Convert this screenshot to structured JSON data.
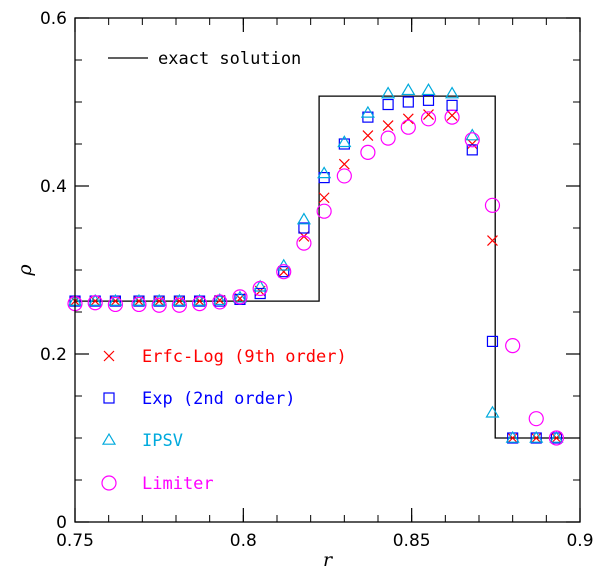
{
  "chart_data": {
    "type": "scatter",
    "title": "",
    "xlabel": "r",
    "ylabel": "ρ",
    "xlim": [
      0.75,
      0.9
    ],
    "ylim": [
      0,
      0.6
    ],
    "x_ticks": [
      0.75,
      0.8,
      0.85,
      0.9
    ],
    "x_tick_labels": [
      "0.75",
      "0.8",
      "0.85",
      "0.9"
    ],
    "y_ticks": [
      0,
      0.2,
      0.4,
      0.6
    ],
    "y_tick_labels": [
      "0",
      "0.2",
      "0.4",
      "0.6"
    ],
    "x_minor_step": 0.01,
    "y_minor_step": 0.05,
    "grid": false,
    "exact_solution": {
      "name": "exact solution",
      "color": "#000000",
      "x": [
        0.75,
        0.8225,
        0.8225,
        0.8748,
        0.8748,
        0.9
      ],
      "y": [
        0.263,
        0.263,
        0.507,
        0.507,
        0.1,
        0.1
      ]
    },
    "series": [
      {
        "name": "Erfc-Log (9th order)",
        "marker": "cross",
        "color": "#ff0000",
        "x": [
          0.75,
          0.756,
          0.762,
          0.769,
          0.775,
          0.781,
          0.787,
          0.793,
          0.799,
          0.805,
          0.812,
          0.818,
          0.824,
          0.83,
          0.837,
          0.843,
          0.849,
          0.855,
          0.862,
          0.868,
          0.874,
          0.88,
          0.887,
          0.893
        ],
        "y": [
          0.263,
          0.263,
          0.263,
          0.263,
          0.263,
          0.263,
          0.263,
          0.264,
          0.266,
          0.275,
          0.298,
          0.34,
          0.386,
          0.426,
          0.46,
          0.472,
          0.48,
          0.485,
          0.484,
          0.45,
          0.335,
          0.1,
          0.1,
          0.1
        ]
      },
      {
        "name": "Exp (2nd order)",
        "marker": "square",
        "color": "#0000ff",
        "x": [
          0.75,
          0.756,
          0.762,
          0.769,
          0.775,
          0.781,
          0.787,
          0.793,
          0.799,
          0.805,
          0.812,
          0.818,
          0.824,
          0.83,
          0.837,
          0.843,
          0.849,
          0.855,
          0.862,
          0.868,
          0.874,
          0.88,
          0.887,
          0.893
        ],
        "y": [
          0.263,
          0.263,
          0.263,
          0.263,
          0.263,
          0.263,
          0.263,
          0.263,
          0.265,
          0.272,
          0.298,
          0.35,
          0.41,
          0.45,
          0.482,
          0.497,
          0.5,
          0.502,
          0.496,
          0.443,
          0.215,
          0.1,
          0.1,
          0.1
        ]
      },
      {
        "name": "IPSV",
        "marker": "triangle",
        "color": "#00aadd",
        "x": [
          0.75,
          0.756,
          0.762,
          0.769,
          0.775,
          0.781,
          0.787,
          0.793,
          0.799,
          0.805,
          0.812,
          0.818,
          0.824,
          0.83,
          0.837,
          0.843,
          0.849,
          0.855,
          0.862,
          0.868,
          0.874,
          0.88,
          0.887,
          0.893
        ],
        "y": [
          0.263,
          0.263,
          0.263,
          0.263,
          0.263,
          0.263,
          0.263,
          0.264,
          0.267,
          0.28,
          0.305,
          0.36,
          0.415,
          0.452,
          0.487,
          0.51,
          0.514,
          0.514,
          0.51,
          0.46,
          0.13,
          0.1,
          0.1,
          0.1
        ]
      },
      {
        "name": "Limiter",
        "marker": "circle",
        "color": "#ff00ff",
        "x": [
          0.75,
          0.756,
          0.762,
          0.769,
          0.775,
          0.781,
          0.787,
          0.793,
          0.799,
          0.805,
          0.812,
          0.818,
          0.824,
          0.83,
          0.837,
          0.843,
          0.849,
          0.855,
          0.862,
          0.868,
          0.874,
          0.88,
          0.887,
          0.893
        ],
        "y": [
          0.26,
          0.261,
          0.259,
          0.259,
          0.258,
          0.258,
          0.26,
          0.262,
          0.268,
          0.278,
          0.298,
          0.332,
          0.37,
          0.412,
          0.44,
          0.457,
          0.47,
          0.48,
          0.482,
          0.455,
          0.377,
          0.21,
          0.123,
          0.1
        ]
      }
    ],
    "legend": {
      "top_placement": "top-left",
      "bottom_placement": "lower-left"
    }
  }
}
